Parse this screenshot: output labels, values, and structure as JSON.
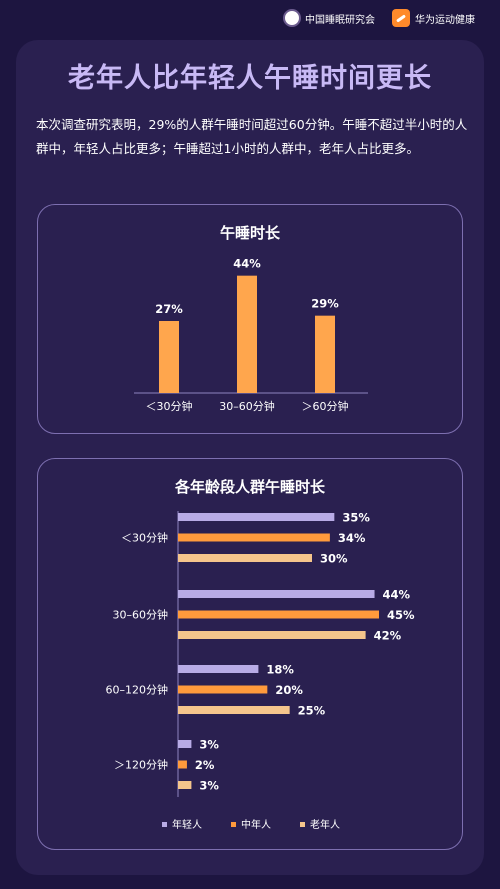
{
  "header": {
    "org1": "中国睡眠研究会",
    "org2": "华为运动健康"
  },
  "title": "老年人比年轻人午睡时间更长",
  "description": "本次调查研究表明，29%的人群午睡时间超过60分钟。午睡不超过半小时的人群中，年轻人占比更多；午睡超过1小时的人群中，老年人占比更多。",
  "colors": {
    "accent": "#ffa64d",
    "young": "#b8abe6",
    "middle": "#ff9a3c",
    "old": "#f5c58c",
    "title": "#c8b9f5"
  },
  "chart_data": [
    {
      "type": "bar",
      "title": "午睡时长",
      "categories": [
        "＜30分钟",
        "30–60分钟",
        "＞60分钟"
      ],
      "values": [
        27,
        44,
        29
      ],
      "value_labels": [
        "27%",
        "44%",
        "29%"
      ],
      "ylim": [
        0,
        50
      ]
    },
    {
      "type": "bar",
      "orientation": "horizontal",
      "title": "各年龄段人群午睡时长",
      "categories": [
        "＜30分钟",
        "30–60分钟",
        "60–120分钟",
        "＞120分钟"
      ],
      "series": [
        {
          "name": "年轻人",
          "values": [
            35,
            44,
            18,
            3
          ],
          "labels": [
            "35%",
            "44%",
            "18%",
            "3%"
          ]
        },
        {
          "name": "中年人",
          "values": [
            34,
            45,
            20,
            2
          ],
          "labels": [
            "34%",
            "45%",
            "20%",
            "2%"
          ]
        },
        {
          "name": "老年人",
          "values": [
            30,
            42,
            25,
            3
          ],
          "labels": [
            "30%",
            "42%",
            "25%",
            "3%"
          ]
        }
      ],
      "legend": "bottom",
      "xlim": [
        0,
        50
      ]
    }
  ]
}
